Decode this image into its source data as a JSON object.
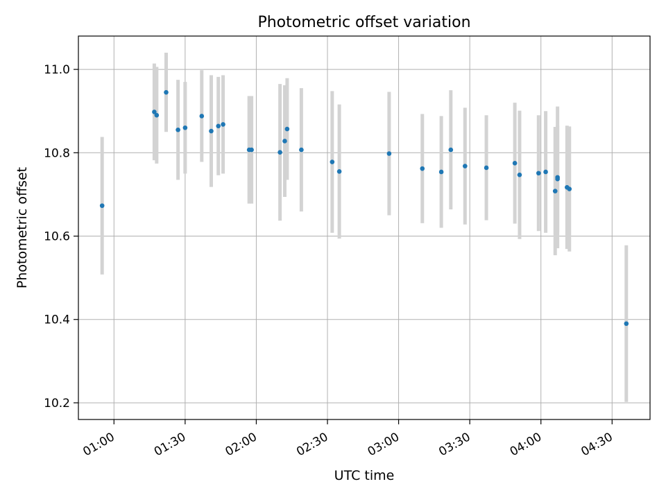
{
  "chart_data": {
    "type": "scatter",
    "title": "Photometric offset variation",
    "xlabel": "UTC time",
    "ylabel": "Photometric offset",
    "xlim": [
      "00:45",
      "04:46"
    ],
    "ylim": [
      10.16,
      11.08
    ],
    "x_ticks": [
      "01:00",
      "01:30",
      "02:00",
      "02:30",
      "03:00",
      "03:30",
      "04:00",
      "04:30"
    ],
    "y_ticks": [
      "10.2",
      "10.4",
      "10.6",
      "10.8",
      "11.0"
    ],
    "grid": true,
    "point_color": "#1f77b4",
    "errorbar_color": "#d3d3d3",
    "series": [
      {
        "points": [
          {
            "x": "00:55",
            "y": 10.673,
            "yerr": 0.165
          },
          {
            "x": "01:17",
            "y": 10.898,
            "yerr": 0.116
          },
          {
            "x": "01:18",
            "y": 10.89,
            "yerr": 0.116
          },
          {
            "x": "01:22",
            "y": 10.945,
            "yerr": 0.095
          },
          {
            "x": "01:27",
            "y": 10.855,
            "yerr": 0.12
          },
          {
            "x": "01:30",
            "y": 10.86,
            "yerr": 0.11
          },
          {
            "x": "01:37",
            "y": 10.888,
            "yerr": 0.11
          },
          {
            "x": "01:41",
            "y": 10.852,
            "yerr": 0.134
          },
          {
            "x": "01:44",
            "y": 10.864,
            "yerr": 0.118
          },
          {
            "x": "01:46",
            "y": 10.868,
            "yerr": 0.118
          },
          {
            "x": "01:57",
            "y": 10.807,
            "yerr": 0.129
          },
          {
            "x": "01:58",
            "y": 10.807,
            "yerr": 0.129
          },
          {
            "x": "02:10",
            "y": 10.801,
            "yerr": 0.164
          },
          {
            "x": "02:12",
            "y": 10.828,
            "yerr": 0.134
          },
          {
            "x": "02:13",
            "y": 10.857,
            "yerr": 0.122
          },
          {
            "x": "02:19",
            "y": 10.807,
            "yerr": 0.148
          },
          {
            "x": "02:32",
            "y": 10.778,
            "yerr": 0.17
          },
          {
            "x": "02:35",
            "y": 10.755,
            "yerr": 0.161
          },
          {
            "x": "02:56",
            "y": 10.798,
            "yerr": 0.148
          },
          {
            "x": "03:10",
            "y": 10.762,
            "yerr": 0.131
          },
          {
            "x": "03:18",
            "y": 10.754,
            "yerr": 0.134
          },
          {
            "x": "03:22",
            "y": 10.807,
            "yerr": 0.143
          },
          {
            "x": "03:28",
            "y": 10.768,
            "yerr": 0.14
          },
          {
            "x": "03:37",
            "y": 10.764,
            "yerr": 0.126
          },
          {
            "x": "03:49",
            "y": 10.775,
            "yerr": 0.145
          },
          {
            "x": "03:51",
            "y": 10.747,
            "yerr": 0.154
          },
          {
            "x": "03:59",
            "y": 10.751,
            "yerr": 0.139
          },
          {
            "x": "04:02",
            "y": 10.754,
            "yerr": 0.146
          },
          {
            "x": "04:06",
            "y": 10.708,
            "yerr": 0.154
          },
          {
            "x": "04:07",
            "y": 10.741,
            "yerr": 0.17
          },
          {
            "x": "04:07",
            "y": 10.737,
            "yerr": 0.128
          },
          {
            "x": "04:11",
            "y": 10.717,
            "yerr": 0.148
          },
          {
            "x": "04:12",
            "y": 10.713,
            "yerr": 0.15
          },
          {
            "x": "04:36",
            "y": 10.39,
            "yerr": 0.188
          }
        ]
      }
    ]
  }
}
